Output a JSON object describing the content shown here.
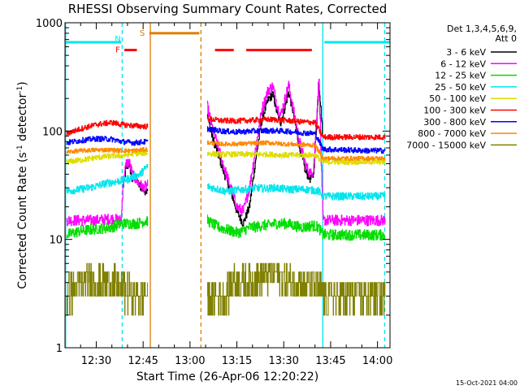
{
  "chart_data": {
    "type": "line",
    "title": "RHESSI Observing Summary Count Rates, Corrected",
    "xlabel": "Start Time (26-Apr-06 12:20:22)",
    "ylabel": "Corrected Count Rate (s⁻¹ detector⁻¹)",
    "ylabel_parts": {
      "main": "Corrected Count Rate (s",
      "sup1": "-1",
      "mid": " detector",
      "sup2": "-1",
      "end": ")"
    },
    "yscale": "log",
    "ylim": [
      1,
      1000
    ],
    "xlim_minutes": [
      740,
      844
    ],
    "x_ticks": [
      {
        "label": "12:30",
        "minutes": 750
      },
      {
        "label": "12:45",
        "minutes": 765
      },
      {
        "label": "13:00",
        "minutes": 780
      },
      {
        "label": "13:15",
        "minutes": 795
      },
      {
        "label": "13:30",
        "minutes": 810
      },
      {
        "label": "13:45",
        "minutes": 825
      },
      {
        "label": "14:00",
        "minutes": 840
      }
    ],
    "y_ticks": [
      {
        "label": "1",
        "value": 1
      },
      {
        "label": "10",
        "value": 10
      },
      {
        "label": "100",
        "value": 100
      },
      {
        "label": "1000",
        "value": 1000
      }
    ],
    "legend": {
      "placement": "right",
      "header": [
        "Det 1,3,4,5,6,9,",
        "Att 0"
      ],
      "entries": [
        "3 - 6 keV",
        "6 - 12 keV",
        "12 - 25 keV",
        "25 - 50 keV",
        "50 - 100 keV",
        "100 - 300 keV",
        "300 - 800 keV",
        "800 - 7000 keV",
        "7000 - 15000 keV"
      ]
    },
    "timestamp": "15-Oct-2021 04:00",
    "flags": [
      {
        "letter": "N",
        "color": "#00e5ee",
        "start": 740,
        "end": 758,
        "level": 660
      },
      {
        "letter": "F",
        "color": "#ff0000",
        "start": 759,
        "end": 763,
        "level": 560
      },
      {
        "letter": "S",
        "color": "#e07b00",
        "start": 767,
        "end": 783,
        "level": 800
      },
      {
        "letter": "",
        "color": "#ff0000",
        "start": 788,
        "end": 794,
        "level": 560
      },
      {
        "letter": "",
        "color": "#ff0000",
        "start": 798,
        "end": 819,
        "level": 560
      },
      {
        "letter": "",
        "color": "#00e5ee",
        "start": 823,
        "end": 844,
        "level": 660
      }
    ],
    "vertical_lines": [
      {
        "minutes": 740.2,
        "color": "#00e5ee",
        "style": "solid"
      },
      {
        "minutes": 758.3,
        "color": "#00e5ee",
        "style": "dashed"
      },
      {
        "minutes": 767.3,
        "color": "#e07b00",
        "style": "solid"
      },
      {
        "minutes": 783.5,
        "color": "#e07b00",
        "style": "dashed"
      },
      {
        "minutes": 822.5,
        "color": "#00e5ee",
        "style": "solid"
      },
      {
        "minutes": 842.3,
        "color": "#00e5ee",
        "style": "dashed"
      }
    ],
    "segments": [
      [
        740.5,
        766.5
      ],
      [
        785.5,
        842.5
      ]
    ],
    "series": [
      {
        "name": "3 - 6 keV",
        "color": "#000000",
        "points": [
          [
            758.5,
            30
          ],
          [
            759.5,
            45
          ],
          [
            760.5,
            50
          ],
          [
            761.5,
            35
          ],
          [
            762.5,
            38
          ],
          [
            763.5,
            32
          ],
          [
            764.5,
            30
          ],
          [
            765.5,
            28
          ],
          [
            766.5,
            30
          ],
          [
            785.5,
            140
          ],
          [
            787,
            90
          ],
          [
            789,
            60
          ],
          [
            791,
            40
          ],
          [
            793,
            28
          ],
          [
            795,
            18
          ],
          [
            797,
            14
          ],
          [
            799,
            20
          ],
          [
            801,
            55
          ],
          [
            803,
            130
          ],
          [
            805,
            195
          ],
          [
            806.5,
            220
          ],
          [
            808,
            140
          ],
          [
            809,
            120
          ],
          [
            810,
            150
          ],
          [
            811.5,
            230
          ],
          [
            813,
            150
          ],
          [
            815,
            70
          ],
          [
            817,
            42
          ],
          [
            818.5,
            36
          ],
          [
            819.5,
            40
          ],
          [
            820.5,
            120
          ],
          [
            821.2,
            300
          ],
          [
            822.5,
            85
          ]
        ]
      },
      {
        "name": "6 - 12 keV",
        "color": "#ff00ff",
        "points": [
          [
            740.5,
            15
          ],
          [
            745,
            15
          ],
          [
            750,
            15
          ],
          [
            755,
            15.5
          ],
          [
            758,
            15
          ],
          [
            758.5,
            32
          ],
          [
            759.5,
            50
          ],
          [
            760.5,
            52
          ],
          [
            761.5,
            40
          ],
          [
            762.5,
            36
          ],
          [
            763.5,
            33
          ],
          [
            765,
            30
          ],
          [
            766.5,
            32
          ],
          [
            785.5,
            170
          ],
          [
            787,
            110
          ],
          [
            789,
            70
          ],
          [
            791,
            45
          ],
          [
            793,
            30
          ],
          [
            795,
            20
          ],
          [
            797,
            18
          ],
          [
            799,
            30
          ],
          [
            801,
            70
          ],
          [
            803,
            160
          ],
          [
            805,
            240
          ],
          [
            806.5,
            260
          ],
          [
            808,
            165
          ],
          [
            809,
            140
          ],
          [
            810,
            180
          ],
          [
            811.5,
            270
          ],
          [
            813,
            160
          ],
          [
            815,
            80
          ],
          [
            817,
            48
          ],
          [
            818.5,
            40
          ],
          [
            819.5,
            45
          ],
          [
            820.5,
            140
          ],
          [
            821.2,
            320
          ],
          [
            822.5,
            15
          ],
          [
            830,
            15
          ],
          [
            836,
            15
          ],
          [
            842.5,
            15
          ]
        ]
      },
      {
        "name": "12 - 25 keV",
        "color": "#00dd00",
        "points": [
          [
            740.5,
            11
          ],
          [
            745,
            12
          ],
          [
            750,
            12.5
          ],
          [
            755,
            13
          ],
          [
            758,
            14
          ],
          [
            760,
            14
          ],
          [
            763,
            14
          ],
          [
            766.5,
            15
          ],
          [
            785.5,
            15
          ],
          [
            787,
            14
          ],
          [
            789,
            13
          ],
          [
            791,
            12.5
          ],
          [
            793,
            12
          ],
          [
            795,
            11.5
          ],
          [
            797,
            12
          ],
          [
            799,
            13
          ],
          [
            801,
            13
          ],
          [
            803,
            13.5
          ],
          [
            805,
            13.5
          ],
          [
            807,
            14
          ],
          [
            809,
            14
          ],
          [
            811,
            14
          ],
          [
            813,
            13.5
          ],
          [
            815,
            13
          ],
          [
            817,
            13
          ],
          [
            819,
            13.5
          ],
          [
            821,
            13
          ],
          [
            822.5,
            11
          ],
          [
            830,
            11
          ],
          [
            836,
            11
          ],
          [
            842.5,
            11
          ]
        ]
      },
      {
        "name": "25 - 50 keV",
        "color": "#00e5ee",
        "points": [
          [
            740.5,
            28
          ],
          [
            745,
            29
          ],
          [
            750,
            31
          ],
          [
            753,
            33
          ],
          [
            756,
            34
          ],
          [
            758,
            35
          ],
          [
            760,
            36
          ],
          [
            762,
            38
          ],
          [
            764,
            40
          ],
          [
            766.5,
            48
          ],
          [
            785.5,
            31
          ],
          [
            787,
            30
          ],
          [
            789,
            29
          ],
          [
            791,
            28
          ],
          [
            793,
            28
          ],
          [
            795,
            28.5
          ],
          [
            797,
            29
          ],
          [
            799,
            29
          ],
          [
            801,
            30
          ],
          [
            803,
            29.5
          ],
          [
            805,
            29.5
          ],
          [
            807,
            30
          ],
          [
            809,
            29.5
          ],
          [
            811,
            29
          ],
          [
            813,
            29
          ],
          [
            815,
            29
          ],
          [
            817,
            29
          ],
          [
            819,
            28.5
          ],
          [
            821,
            28
          ],
          [
            822.5,
            25
          ],
          [
            830,
            25
          ],
          [
            836,
            25
          ],
          [
            842.5,
            25
          ]
        ]
      },
      {
        "name": "50 - 100 keV",
        "color": "#dddd00",
        "points": [
          [
            740.5,
            52
          ],
          [
            745,
            54
          ],
          [
            750,
            57
          ],
          [
            755,
            59
          ],
          [
            758,
            59
          ],
          [
            762,
            62
          ],
          [
            766.5,
            63
          ],
          [
            785.5,
            62
          ],
          [
            790,
            61
          ],
          [
            795,
            61
          ],
          [
            800,
            61
          ],
          [
            805,
            61
          ],
          [
            810,
            60
          ],
          [
            815,
            60
          ],
          [
            820,
            60
          ],
          [
            822.5,
            52
          ],
          [
            830,
            52
          ],
          [
            836,
            52
          ],
          [
            842.5,
            52
          ]
        ]
      },
      {
        "name": "100 - 300 keV",
        "color": "#ff0000",
        "points": [
          [
            740.5,
            95
          ],
          [
            745,
            105
          ],
          [
            750,
            115
          ],
          [
            755,
            120
          ],
          [
            758,
            115
          ],
          [
            762,
            112
          ],
          [
            766.5,
            110
          ],
          [
            785.5,
            130
          ],
          [
            790,
            125
          ],
          [
            795,
            124
          ],
          [
            800,
            126
          ],
          [
            805,
            128
          ],
          [
            810,
            126
          ],
          [
            815,
            122
          ],
          [
            820,
            120
          ],
          [
            822.5,
            88
          ],
          [
            830,
            88
          ],
          [
            836,
            88
          ],
          [
            842.5,
            88
          ]
        ]
      },
      {
        "name": "300 - 800 keV",
        "color": "#0000ff",
        "points": [
          [
            740.5,
            78
          ],
          [
            745,
            82
          ],
          [
            750,
            85
          ],
          [
            755,
            84
          ],
          [
            758,
            80
          ],
          [
            762,
            78
          ],
          [
            766.5,
            80
          ],
          [
            785.5,
            105
          ],
          [
            790,
            100
          ],
          [
            795,
            98
          ],
          [
            800,
            100
          ],
          [
            805,
            101
          ],
          [
            810,
            100
          ],
          [
            815,
            97
          ],
          [
            820,
            95
          ],
          [
            822.5,
            68
          ],
          [
            830,
            67
          ],
          [
            836,
            66
          ],
          [
            842.5,
            66
          ]
        ]
      },
      {
        "name": "800 - 7000 keV",
        "color": "#ff8800",
        "points": [
          [
            740.5,
            64
          ],
          [
            745,
            66
          ],
          [
            750,
            67
          ],
          [
            755,
            67
          ],
          [
            758,
            66
          ],
          [
            762,
            66
          ],
          [
            766.5,
            68
          ],
          [
            785.5,
            78
          ],
          [
            790,
            76
          ],
          [
            795,
            76
          ],
          [
            800,
            77
          ],
          [
            805,
            78
          ],
          [
            810,
            76
          ],
          [
            815,
            75
          ],
          [
            820,
            74
          ],
          [
            822.5,
            56
          ],
          [
            830,
            56
          ],
          [
            836,
            56
          ],
          [
            842.5,
            56
          ]
        ]
      },
      {
        "name": "7000 - 15000 keV",
        "color": "#808000",
        "points": [
          [
            740.5,
            3
          ],
          [
            743,
            3.5
          ],
          [
            746,
            4
          ],
          [
            749,
            4
          ],
          [
            752,
            4
          ],
          [
            755,
            4
          ],
          [
            757,
            3.5
          ],
          [
            759,
            3.5
          ],
          [
            761,
            3
          ],
          [
            763,
            3
          ],
          [
            766.5,
            3
          ],
          [
            785.5,
            3
          ],
          [
            788,
            3
          ],
          [
            791,
            3
          ],
          [
            794,
            4
          ],
          [
            797,
            4
          ],
          [
            800,
            4
          ],
          [
            803,
            4.5
          ],
          [
            806,
            5
          ],
          [
            809,
            4.5
          ],
          [
            812,
            4
          ],
          [
            815,
            4
          ],
          [
            818,
            3.5
          ],
          [
            821,
            3.5
          ],
          [
            822.5,
            3
          ],
          [
            826,
            3
          ],
          [
            830,
            3
          ],
          [
            834,
            3
          ],
          [
            838,
            3
          ],
          [
            842.5,
            3
          ]
        ]
      }
    ]
  }
}
